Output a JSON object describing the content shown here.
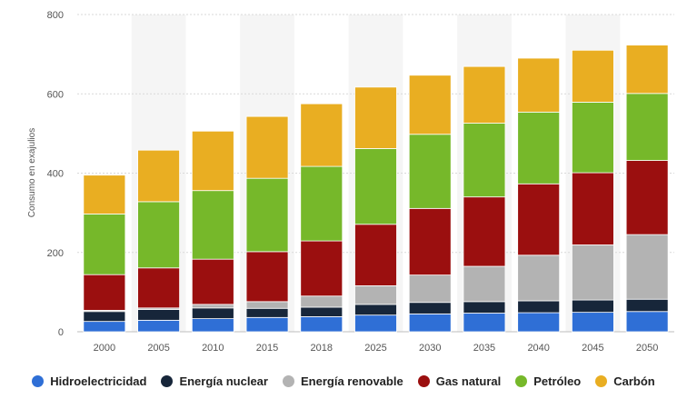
{
  "chart_data": {
    "type": "bar",
    "stacked": true,
    "ylabel": "Consumo en exajulios",
    "ylim": [
      0,
      800
    ],
    "yticks": [
      0,
      200,
      400,
      600,
      800
    ],
    "grid": true,
    "legend_position": "bottom",
    "categories": [
      "2000",
      "2005",
      "2010",
      "2015",
      "2018",
      "2025",
      "2030",
      "2035",
      "2040",
      "2045",
      "2050"
    ],
    "series": [
      {
        "name": "Hidroelectricidad",
        "color": "#2f6fd6",
        "values": [
          26,
          29,
          33,
          36,
          38,
          42,
          45,
          47,
          48,
          49,
          51
        ]
      },
      {
        "name": "Energía nuclear",
        "color": "#17263a",
        "values": [
          25,
          27,
          27,
          23,
          24,
          27,
          29,
          29,
          30,
          31,
          31
        ]
      },
      {
        "name": "Energía renovable",
        "color": "#b3b3b3",
        "values": [
          3,
          4,
          9,
          17,
          28,
          47,
          69,
          89,
          115,
          139,
          163
        ]
      },
      {
        "name": "Gas natural",
        "color": "#9b0f0f",
        "values": [
          90,
          101,
          114,
          126,
          139,
          155,
          168,
          175,
          180,
          182,
          187
        ]
      },
      {
        "name": "Petróleo",
        "color": "#76b82a",
        "values": [
          153,
          167,
          173,
          185,
          188,
          191,
          187,
          186,
          181,
          178,
          169
        ]
      },
      {
        "name": "Carbón",
        "color": "#e9ae22",
        "values": [
          98,
          130,
          150,
          156,
          158,
          155,
          149,
          143,
          136,
          131,
          122
        ]
      }
    ]
  }
}
